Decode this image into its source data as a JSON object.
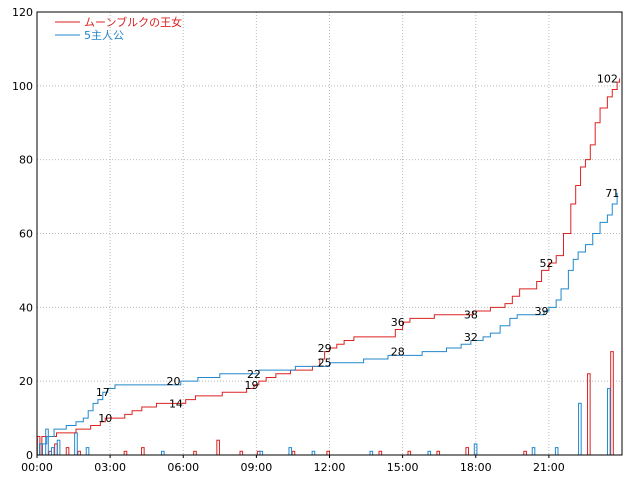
{
  "chart_data": {
    "type": "line",
    "title": "",
    "xlabel": "",
    "ylabel": "",
    "xlim": [
      0,
      24
    ],
    "ylim": [
      0,
      120
    ],
    "legend_position": "top-left",
    "x_tick_labels": [
      "00:00",
      "03:00",
      "06:00",
      "09:00",
      "12:00",
      "15:00",
      "18:00",
      "21:00"
    ],
    "y_tick_labels": [
      "0",
      "20",
      "40",
      "60",
      "80",
      "100",
      "120"
    ],
    "y_ticks": [
      0,
      20,
      40,
      60,
      80,
      100,
      120
    ],
    "colors": {
      "series1": "#dd2222",
      "series2": "#2288cc"
    },
    "series": [
      {
        "name": "ムーンブルクの王女",
        "color": "#dd2222",
        "cumulative": [
          [
            0,
            0
          ],
          [
            0.2,
            5
          ],
          [
            0.7,
            5
          ],
          [
            0.8,
            6
          ],
          [
            1.6,
            7
          ],
          [
            2.2,
            8
          ],
          [
            2.6,
            9
          ],
          [
            2.8,
            10
          ],
          [
            3.6,
            11
          ],
          [
            3.9,
            12
          ],
          [
            4.3,
            13
          ],
          [
            4.9,
            14
          ],
          [
            5.7,
            14
          ],
          [
            6.1,
            15
          ],
          [
            6.5,
            16
          ],
          [
            7.2,
            16
          ],
          [
            7.6,
            17
          ],
          [
            8.6,
            18
          ],
          [
            8.9,
            19
          ],
          [
            9.1,
            20
          ],
          [
            9.4,
            21
          ],
          [
            9.8,
            22
          ],
          [
            10.4,
            23
          ],
          [
            11.3,
            24
          ],
          [
            11.6,
            26
          ],
          [
            11.8,
            28
          ],
          [
            12.0,
            29
          ],
          [
            12.3,
            30
          ],
          [
            12.6,
            31
          ],
          [
            13.0,
            32
          ],
          [
            14.4,
            32
          ],
          [
            14.7,
            34
          ],
          [
            15.0,
            36
          ],
          [
            15.3,
            37
          ],
          [
            16.3,
            38
          ],
          [
            17.6,
            38
          ],
          [
            17.9,
            39
          ],
          [
            18.4,
            39
          ],
          [
            18.6,
            40
          ],
          [
            19.2,
            41
          ],
          [
            19.5,
            43
          ],
          [
            19.8,
            45
          ],
          [
            20.2,
            45
          ],
          [
            20.5,
            47
          ],
          [
            20.7,
            50
          ],
          [
            21.0,
            52
          ],
          [
            21.3,
            54
          ],
          [
            21.6,
            60
          ],
          [
            21.9,
            68
          ],
          [
            22.1,
            73
          ],
          [
            22.3,
            78
          ],
          [
            22.5,
            80
          ],
          [
            22.7,
            84
          ],
          [
            22.9,
            90
          ],
          [
            23.1,
            94
          ],
          [
            23.4,
            97
          ],
          [
            23.6,
            99
          ],
          [
            23.8,
            101
          ],
          [
            23.9,
            102
          ]
        ],
        "hourly": [
          5,
          0,
          1,
          3,
          0,
          2,
          0,
          1,
          0,
          0,
          0,
          0,
          0,
          0,
          0,
          1,
          0,
          0,
          2,
          0,
          0,
          0,
          0,
          0,
          0,
          0,
          0,
          1,
          0,
          0,
          0,
          4,
          0,
          0,
          0,
          1,
          0,
          0,
          1,
          0,
          0,
          0,
          0,
          0,
          1,
          0,
          0,
          0,
          0,
          0,
          1,
          0,
          0,
          0,
          0,
          0,
          0,
          0,
          0,
          1,
          0,
          0,
          0,
          0,
          1,
          0,
          0,
          0,
          0,
          1,
          0,
          0,
          0,
          0,
          2,
          0,
          0,
          0,
          0,
          0,
          0,
          0,
          0,
          0,
          1,
          0,
          0,
          0,
          0,
          0,
          0,
          0,
          0,
          0,
          0,
          22,
          0,
          0,
          0,
          28,
          0
        ],
        "data_labels": [
          {
            "x": 2.8,
            "y": 10,
            "text": "10"
          },
          {
            "x": 5.7,
            "y": 14,
            "text": "14"
          },
          {
            "x": 8.8,
            "y": 19,
            "text": "19"
          },
          {
            "x": 11.8,
            "y": 29,
            "text": "29"
          },
          {
            "x": 14.8,
            "y": 36,
            "text": "36"
          },
          {
            "x": 17.8,
            "y": 38,
            "text": "38"
          },
          {
            "x": 20.9,
            "y": 52,
            "text": "52"
          },
          {
            "x": 23.4,
            "y": 102,
            "text": "102"
          }
        ]
      },
      {
        "name": "5主人公",
        "color": "#2288cc",
        "cumulative": [
          [
            0,
            0
          ],
          [
            0.1,
            3
          ],
          [
            0.4,
            5
          ],
          [
            0.7,
            7
          ],
          [
            1.2,
            8
          ],
          [
            1.6,
            9
          ],
          [
            1.9,
            10
          ],
          [
            2.1,
            12
          ],
          [
            2.3,
            14
          ],
          [
            2.5,
            15
          ],
          [
            2.7,
            17
          ],
          [
            2.9,
            18
          ],
          [
            3.2,
            19
          ],
          [
            5.6,
            19
          ],
          [
            5.9,
            20
          ],
          [
            6.6,
            21
          ],
          [
            7.5,
            22
          ],
          [
            8.9,
            22
          ],
          [
            9.1,
            23
          ],
          [
            10.6,
            24
          ],
          [
            11.8,
            24
          ],
          [
            12.0,
            25
          ],
          [
            13.4,
            26
          ],
          [
            14.4,
            27
          ],
          [
            15.8,
            28
          ],
          [
            16.8,
            29
          ],
          [
            17.4,
            30
          ],
          [
            17.8,
            31
          ],
          [
            18.3,
            32
          ],
          [
            18.6,
            33
          ],
          [
            19.0,
            35
          ],
          [
            19.4,
            37
          ],
          [
            19.7,
            38
          ],
          [
            20.8,
            39
          ],
          [
            21.0,
            40
          ],
          [
            21.3,
            42
          ],
          [
            21.5,
            45
          ],
          [
            21.8,
            50
          ],
          [
            22.0,
            53
          ],
          [
            22.2,
            55
          ],
          [
            22.5,
            57
          ],
          [
            22.8,
            60
          ],
          [
            23.1,
            63
          ],
          [
            23.4,
            65
          ],
          [
            23.6,
            68
          ],
          [
            23.8,
            71
          ]
        ],
        "hourly": [
          3,
          7,
          2,
          4,
          0,
          0,
          6,
          0,
          2,
          0,
          0,
          0,
          0,
          0,
          0,
          0,
          0,
          0,
          0,
          0,
          0,
          1,
          0,
          0,
          0,
          0,
          0,
          0,
          0,
          0,
          0,
          0,
          0,
          0,
          0,
          0,
          0,
          0,
          1,
          0,
          0,
          0,
          0,
          2,
          0,
          0,
          0,
          1,
          0,
          0,
          0,
          0,
          0,
          0,
          0,
          0,
          0,
          1,
          0,
          0,
          0,
          0,
          0,
          0,
          0,
          0,
          0,
          1,
          0,
          0,
          0,
          0,
          0,
          0,
          0,
          3,
          0,
          0,
          0,
          0,
          0,
          0,
          0,
          0,
          0,
          2,
          0,
          0,
          0,
          2,
          0,
          0,
          0,
          14,
          0,
          0,
          0,
          0,
          18,
          0
        ],
        "data_labels": [
          {
            "x": 2.7,
            "y": 17,
            "text": "17"
          },
          {
            "x": 5.6,
            "y": 20,
            "text": "20"
          },
          {
            "x": 8.9,
            "y": 22,
            "text": "22"
          },
          {
            "x": 11.8,
            "y": 25,
            "text": "25"
          },
          {
            "x": 14.8,
            "y": 28,
            "text": "28"
          },
          {
            "x": 17.8,
            "y": 32,
            "text": "32"
          },
          {
            "x": 20.7,
            "y": 39,
            "text": "39"
          },
          {
            "x": 23.6,
            "y": 71,
            "text": "71"
          }
        ]
      }
    ]
  }
}
